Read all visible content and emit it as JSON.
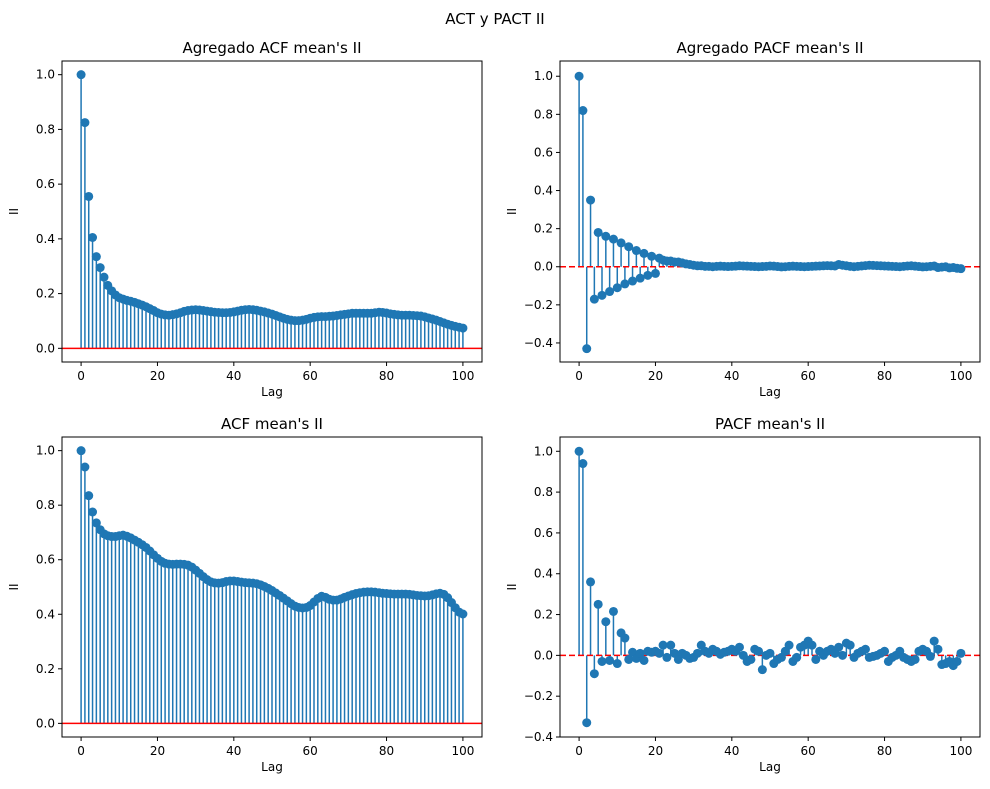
{
  "figure": {
    "suptitle": "ACT y PACT  II"
  },
  "colors": {
    "stem": "#1f77b4",
    "zero_line": "#ff0000",
    "axes": "#000000"
  },
  "chart_data": [
    {
      "type": "stem",
      "title": "Agregado ACF mean's II",
      "xlabel": "Lag",
      "ylabel": "II",
      "xlim": [
        -5,
        105
      ],
      "ylim": [
        -0.05,
        1.05
      ],
      "xticks": [
        0,
        20,
        40,
        60,
        80,
        100
      ],
      "yticks": [
        0.0,
        0.2,
        0.4,
        0.6,
        0.8,
        1.0
      ],
      "ytick_labels": [
        "0.0",
        "0.2",
        "0.4",
        "0.6",
        "0.8",
        "1.0"
      ],
      "zero_line_style": "solid",
      "x_start": 0,
      "values": [
        1.0,
        0.825,
        0.555,
        0.405,
        0.335,
        0.295,
        0.26,
        0.23,
        0.21,
        0.195,
        0.185,
        0.18,
        0.175,
        0.172,
        0.168,
        0.163,
        0.158,
        0.152,
        0.145,
        0.138,
        0.13,
        0.125,
        0.122,
        0.121,
        0.123,
        0.126,
        0.13,
        0.135,
        0.138,
        0.14,
        0.141,
        0.14,
        0.138,
        0.136,
        0.134,
        0.132,
        0.131,
        0.13,
        0.13,
        0.131,
        0.133,
        0.136,
        0.139,
        0.141,
        0.142,
        0.141,
        0.139,
        0.136,
        0.133,
        0.129,
        0.125,
        0.12,
        0.115,
        0.11,
        0.106,
        0.103,
        0.101,
        0.101,
        0.103,
        0.106,
        0.11,
        0.113,
        0.115,
        0.116,
        0.116,
        0.117,
        0.118,
        0.12,
        0.122,
        0.124,
        0.126,
        0.128,
        0.128,
        0.128,
        0.128,
        0.128,
        0.128,
        0.13,
        0.132,
        0.131,
        0.129,
        0.126,
        0.124,
        0.122,
        0.121,
        0.121,
        0.121,
        0.12,
        0.119,
        0.118,
        0.115,
        0.111,
        0.107,
        0.103,
        0.098,
        0.093,
        0.088,
        0.084,
        0.08,
        0.077,
        0.074
      ]
    },
    {
      "type": "stem",
      "title": "Agregado PACF mean's II",
      "xlabel": "Lag",
      "ylabel": "II",
      "xlim": [
        -5,
        105
      ],
      "ylim": [
        -0.5,
        1.08
      ],
      "xticks": [
        0,
        20,
        40,
        60,
        80,
        100
      ],
      "yticks": [
        -0.4,
        -0.2,
        0.0,
        0.2,
        0.4,
        0.6,
        0.8,
        1.0
      ],
      "ytick_labels": [
        "−0.4",
        "−0.2",
        "0.0",
        "0.2",
        "0.4",
        "0.6",
        "0.8",
        "1.0"
      ],
      "zero_line_style": "dashed",
      "x_start": 0,
      "values": [
        1.0,
        0.82,
        -0.43,
        0.35,
        -0.17,
        0.18,
        -0.15,
        0.16,
        -0.13,
        0.145,
        -0.11,
        0.125,
        -0.09,
        0.105,
        -0.075,
        0.085,
        -0.06,
        0.07,
        -0.045,
        0.055,
        -0.035,
        0.045,
        0.035,
        0.03,
        0.03,
        0.025,
        0.025,
        0.02,
        0.015,
        0.012,
        0.008,
        0.005,
        0.005,
        0.002,
        0.002,
        0.0,
        0.002,
        0.003,
        0.002,
        0.001,
        0.002,
        0.003,
        0.005,
        0.004,
        0.003,
        0.002,
        0.001,
        0.0,
        0.001,
        0.002,
        0.004,
        0.003,
        0.001,
        -0.001,
        0.0,
        0.002,
        0.003,
        0.002,
        0.001,
        0.0,
        0.001,
        0.002,
        0.003,
        0.004,
        0.005,
        0.006,
        0.005,
        0.004,
        0.012,
        0.008,
        0.005,
        0.002,
        0.0,
        0.002,
        0.004,
        0.006,
        0.008,
        0.007,
        0.006,
        0.005,
        0.004,
        0.003,
        0.002,
        0.001,
        0.0,
        0.002,
        0.004,
        0.005,
        0.003,
        0.001,
        -0.001,
        0.0,
        0.002,
        0.004,
        -0.004,
        -0.002,
        0.0,
        -0.006,
        -0.004,
        -0.008,
        -0.01
      ]
    },
    {
      "type": "stem",
      "title": "ACF mean's II",
      "xlabel": "Lag",
      "ylabel": "II",
      "xlim": [
        -5,
        105
      ],
      "ylim": [
        -0.05,
        1.05
      ],
      "xticks": [
        0,
        20,
        40,
        60,
        80,
        100
      ],
      "yticks": [
        0.0,
        0.2,
        0.4,
        0.6,
        0.8,
        1.0
      ],
      "ytick_labels": [
        "0.0",
        "0.2",
        "0.4",
        "0.6",
        "0.8",
        "1.0"
      ],
      "zero_line_style": "solid",
      "x_start": 0,
      "values": [
        1.0,
        0.94,
        0.835,
        0.775,
        0.735,
        0.71,
        0.695,
        0.688,
        0.685,
        0.685,
        0.688,
        0.69,
        0.686,
        0.68,
        0.672,
        0.664,
        0.655,
        0.645,
        0.632,
        0.618,
        0.605,
        0.594,
        0.587,
        0.584,
        0.583,
        0.584,
        0.584,
        0.583,
        0.58,
        0.573,
        0.562,
        0.55,
        0.538,
        0.527,
        0.519,
        0.515,
        0.514,
        0.516,
        0.52,
        0.522,
        0.522,
        0.52,
        0.518,
        0.516,
        0.515,
        0.514,
        0.512,
        0.508,
        0.502,
        0.495,
        0.487,
        0.478,
        0.469,
        0.459,
        0.449,
        0.439,
        0.43,
        0.425,
        0.423,
        0.425,
        0.432,
        0.445,
        0.458,
        0.466,
        0.462,
        0.455,
        0.452,
        0.452,
        0.456,
        0.462,
        0.467,
        0.472,
        0.476,
        0.479,
        0.481,
        0.482,
        0.482,
        0.481,
        0.479,
        0.477,
        0.476,
        0.475,
        0.474,
        0.474,
        0.474,
        0.474,
        0.473,
        0.471,
        0.469,
        0.468,
        0.467,
        0.468,
        0.471,
        0.475,
        0.477,
        0.473,
        0.461,
        0.443,
        0.424,
        0.408,
        0.401
      ]
    },
    {
      "type": "stem",
      "title": "PACF mean's II",
      "xlabel": "Lag",
      "ylabel": "II",
      "xlim": [
        -5,
        105
      ],
      "ylim": [
        -0.4,
        1.07
      ],
      "xticks": [
        0,
        20,
        40,
        60,
        80,
        100
      ],
      "yticks": [
        -0.4,
        -0.2,
        0.0,
        0.2,
        0.4,
        0.6,
        0.8,
        1.0
      ],
      "ytick_labels": [
        "−0.4",
        "−0.2",
        "0.0",
        "0.2",
        "0.4",
        "0.6",
        "0.8",
        "1.0"
      ],
      "zero_line_style": "dashed",
      "x_start": 0,
      "values": [
        1.0,
        0.94,
        -0.33,
        0.36,
        -0.09,
        0.25,
        -0.03,
        0.165,
        -0.025,
        0.215,
        -0.04,
        0.11,
        0.085,
        -0.02,
        0.015,
        -0.015,
        0.01,
        -0.025,
        0.02,
        0.015,
        0.02,
        0.01,
        0.05,
        -0.01,
        0.05,
        0.01,
        -0.02,
        0.01,
        0.0,
        -0.015,
        -0.01,
        0.01,
        0.05,
        0.02,
        0.01,
        0.03,
        0.02,
        0.005,
        0.015,
        0.02,
        0.03,
        0.02,
        0.04,
        0.0,
        -0.03,
        -0.02,
        0.03,
        0.02,
        -0.07,
        0.0,
        0.01,
        -0.04,
        -0.02,
        -0.01,
        0.02,
        0.05,
        -0.03,
        -0.01,
        0.04,
        0.05,
        0.07,
        0.05,
        -0.02,
        0.02,
        0.0,
        0.02,
        0.03,
        0.01,
        0.04,
        0.0,
        0.06,
        0.05,
        -0.01,
        0.01,
        0.02,
        0.03,
        -0.01,
        -0.005,
        0.0,
        0.01,
        0.02,
        -0.03,
        -0.01,
        0.0,
        0.02,
        -0.01,
        -0.02,
        -0.03,
        -0.02,
        0.02,
        0.03,
        0.02,
        -0.005,
        0.07,
        0.03,
        -0.045,
        -0.04,
        -0.03,
        -0.05,
        -0.03,
        0.01
      ]
    }
  ]
}
